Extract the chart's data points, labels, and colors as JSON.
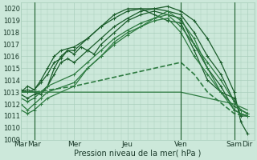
{
  "title": "Pression niveau de la mer( hPa )",
  "bg_color": "#cce8da",
  "grid_color": "#aacfbc",
  "line_colors": [
    "#1a5c2a",
    "#1a5c2a",
    "#1a5c2a",
    "#1a5c2a",
    "#2d7a40",
    "#2d7a40",
    "#2d7a40",
    "#2d7a40",
    "#2d7a40"
  ],
  "ylim": [
    1009,
    1020.5
  ],
  "yticks": [
    1009,
    1010,
    1011,
    1012,
    1013,
    1014,
    1015,
    1016,
    1017,
    1018,
    1019,
    1020
  ],
  "xtick_labels": [
    "Mar",
    "Mar",
    "Mer",
    "Jeu",
    "Ven",
    "Sam",
    "Dir"
  ],
  "xtick_pos": [
    0,
    12,
    48,
    96,
    144,
    192,
    204
  ],
  "xlim": [
    0,
    210
  ],
  "vlines_x": [
    12,
    144,
    192
  ],
  "font_color": "#1a3a2a",
  "lines": [
    {
      "x": [
        0,
        6,
        12,
        18,
        24,
        30,
        36,
        42,
        48,
        60,
        72,
        84,
        96,
        108,
        120,
        132,
        144,
        156,
        168,
        180,
        192,
        198,
        204
      ],
      "y": [
        1013.0,
        1013.2,
        1013.0,
        1012.8,
        1013.5,
        1014.5,
        1015.5,
        1015.8,
        1015.5,
        1016.5,
        1017.5,
        1018.5,
        1019.2,
        1019.8,
        1020.0,
        1020.2,
        1019.8,
        1019.0,
        1017.5,
        1015.5,
        1013.0,
        1010.5,
        1009.5
      ],
      "style": "-",
      "marker": "+",
      "lw": 0.9,
      "ms": 2.5
    },
    {
      "x": [
        0,
        6,
        12,
        18,
        24,
        30,
        36,
        42,
        48,
        60,
        72,
        84,
        96,
        108,
        120,
        132,
        144,
        156,
        168,
        180,
        192,
        198,
        204
      ],
      "y": [
        1012.8,
        1012.5,
        1012.8,
        1013.0,
        1013.5,
        1015.0,
        1016.0,
        1016.5,
        1016.5,
        1017.5,
        1018.5,
        1019.5,
        1020.0,
        1020.0,
        1019.5,
        1019.0,
        1018.8,
        1016.5,
        1014.0,
        1013.0,
        1012.5,
        1011.0,
        1011.0
      ],
      "style": "-",
      "marker": "+",
      "lw": 0.9,
      "ms": 2.5
    },
    {
      "x": [
        0,
        6,
        12,
        18,
        24,
        30,
        36,
        42,
        48,
        54,
        60,
        66,
        72,
        84,
        96,
        108,
        120,
        132,
        144,
        156,
        168,
        180,
        192,
        198,
        204
      ],
      "y": [
        1013.0,
        1013.5,
        1013.2,
        1013.8,
        1014.5,
        1015.5,
        1015.8,
        1016.5,
        1016.2,
        1016.8,
        1016.5,
        1016.2,
        1017.0,
        1018.0,
        1019.0,
        1019.5,
        1019.8,
        1019.5,
        1019.2,
        1017.0,
        1015.0,
        1013.5,
        1011.5,
        1011.2,
        1011.0
      ],
      "style": "-",
      "marker": "+",
      "lw": 0.9,
      "ms": 2.5
    },
    {
      "x": [
        0,
        6,
        12,
        18,
        24,
        30,
        36,
        48,
        60,
        72,
        84,
        96,
        108,
        120,
        132,
        144,
        156,
        168,
        180,
        192,
        198,
        204
      ],
      "y": [
        1013.2,
        1013.0,
        1013.2,
        1014.0,
        1015.0,
        1016.0,
        1016.5,
        1016.8,
        1017.5,
        1018.5,
        1019.2,
        1019.8,
        1020.0,
        1020.0,
        1019.8,
        1019.5,
        1018.0,
        1016.0,
        1014.5,
        1012.2,
        1011.5,
        1011.2
      ],
      "style": "-",
      "marker": "+",
      "lw": 0.9,
      "ms": 2.5
    },
    {
      "x": [
        0,
        12,
        48,
        96,
        144,
        192,
        204
      ],
      "y": [
        1013.0,
        1013.0,
        1013.0,
        1013.0,
        1013.0,
        1012.0,
        1011.5
      ],
      "style": "-",
      "marker": "",
      "lw": 0.9,
      "ms": 0
    },
    {
      "x": [
        0,
        6,
        12,
        18,
        24,
        48,
        60,
        72,
        84,
        96,
        108,
        120,
        132,
        144,
        156,
        168,
        180,
        192,
        198,
        204
      ],
      "y": [
        1012.5,
        1012.2,
        1012.5,
        1013.0,
        1013.5,
        1014.5,
        1015.5,
        1016.5,
        1017.5,
        1018.2,
        1018.8,
        1019.2,
        1019.5,
        1018.5,
        1017.0,
        1015.5,
        1014.0,
        1012.2,
        1011.5,
        1011.2
      ],
      "style": "-",
      "marker": "+",
      "lw": 0.9,
      "ms": 2.5
    },
    {
      "x": [
        0,
        6,
        12,
        18,
        24,
        48,
        60,
        72,
        84,
        96,
        108,
        120,
        132,
        144,
        156,
        168,
        180,
        192,
        198,
        204
      ],
      "y": [
        1011.5,
        1011.2,
        1011.5,
        1012.0,
        1012.5,
        1013.5,
        1015.0,
        1016.0,
        1017.2,
        1018.0,
        1018.5,
        1019.0,
        1019.2,
        1018.0,
        1016.0,
        1014.5,
        1013.0,
        1011.5,
        1011.2,
        1011.0
      ],
      "style": "-",
      "marker": "+",
      "lw": 0.9,
      "ms": 2.5
    },
    {
      "x": [
        0,
        6,
        12,
        18,
        24,
        48,
        60,
        72,
        84,
        96,
        108,
        120,
        132,
        144,
        156,
        168,
        180,
        192,
        198,
        204
      ],
      "y": [
        1012.0,
        1011.5,
        1012.0,
        1012.5,
        1013.0,
        1013.8,
        1015.0,
        1016.0,
        1017.0,
        1017.8,
        1018.5,
        1019.2,
        1019.8,
        1019.0,
        1017.5,
        1015.0,
        1013.0,
        1011.8,
        1011.5,
        1011.2
      ],
      "style": "-",
      "marker": "+",
      "lw": 0.9,
      "ms": 2.5
    },
    {
      "x": [
        0,
        12,
        48,
        96,
        144,
        156,
        168,
        192,
        204
      ],
      "y": [
        1013.0,
        1013.0,
        1013.5,
        1014.5,
        1015.5,
        1014.5,
        1013.0,
        1011.2,
        1011.0
      ],
      "style": "--",
      "marker": "",
      "lw": 1.2,
      "ms": 0
    }
  ]
}
